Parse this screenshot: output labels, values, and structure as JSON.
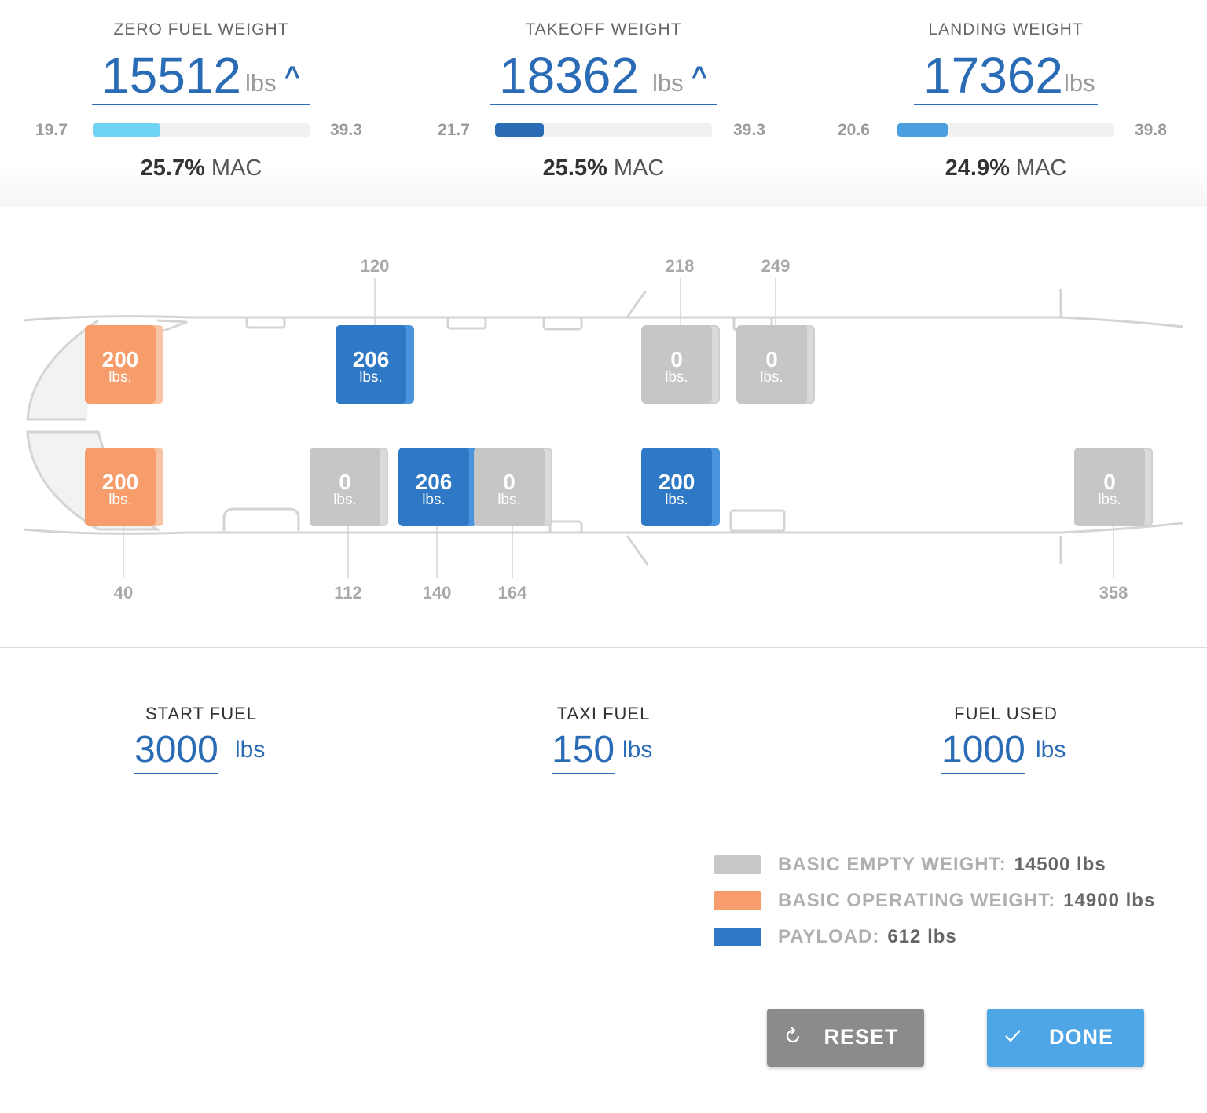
{
  "weights": [
    {
      "title": "ZERO FUEL WEIGHT",
      "value": "15512",
      "unit": "lbs",
      "caret": "^",
      "min": "19.7",
      "max": "39.3",
      "fill_fraction": 0.31,
      "fill_color": "#6fd3f5",
      "mac_value": "25.7%",
      "mac_label": "MAC"
    },
    {
      "title": "TAKEOFF WEIGHT",
      "value": "18362",
      "unit": "lbs",
      "caret": "^",
      "min": "21.7",
      "max": "39.3",
      "fill_fraction": 0.22,
      "fill_color": "#2a6bb5",
      "mac_value": "25.5%",
      "mac_label": "MAC"
    },
    {
      "title": "LANDING WEIGHT",
      "value": "17362",
      "unit": "lbs",
      "caret": "",
      "min": "20.6",
      "max": "39.8",
      "fill_fraction": 0.23,
      "fill_color": "#4a9fe0",
      "mac_value": "24.9%",
      "mac_label": "MAC"
    }
  ],
  "stations": {
    "top": [
      "120",
      "218",
      "249"
    ],
    "bottom": [
      "40",
      "112",
      "140",
      "164",
      "358"
    ]
  },
  "loads": [
    {
      "value": "200",
      "unit": "lbs.",
      "kind": "orange"
    },
    {
      "value": "206",
      "unit": "lbs.",
      "kind": "blue"
    },
    {
      "value": "0",
      "unit": "lbs.",
      "kind": "gray"
    },
    {
      "value": "0",
      "unit": "lbs.",
      "kind": "gray"
    },
    {
      "value": "200",
      "unit": "lbs.",
      "kind": "orange"
    },
    {
      "value": "0",
      "unit": "lbs.",
      "kind": "gray"
    },
    {
      "value": "206",
      "unit": "lbs.",
      "kind": "blue"
    },
    {
      "value": "0",
      "unit": "lbs.",
      "kind": "gray"
    },
    {
      "value": "200",
      "unit": "lbs.",
      "kind": "blue"
    },
    {
      "value": "0",
      "unit": "lbs.",
      "kind": "gray"
    }
  ],
  "fuel": [
    {
      "title": "START FUEL",
      "value": "3000",
      "unit": "lbs"
    },
    {
      "title": "TAXI FUEL",
      "value": "150",
      "unit": "lbs"
    },
    {
      "title": "FUEL USED",
      "value": "1000",
      "unit": "lbs"
    }
  ],
  "legend": [
    {
      "label": "BASIC EMPTY WEIGHT:",
      "value": "14500 lbs",
      "color": "#c8c8c8"
    },
    {
      "label": "BASIC OPERATING WEIGHT:",
      "value": "14900 lbs",
      "color": "#f79d6c"
    },
    {
      "label": "PAYLOAD:",
      "value": "612 lbs",
      "color": "#2f78c6"
    }
  ],
  "buttons": {
    "reset": {
      "label": "RESET",
      "icon": "refresh-icon"
    },
    "done": {
      "label": "DONE",
      "icon": "check-icon"
    }
  }
}
